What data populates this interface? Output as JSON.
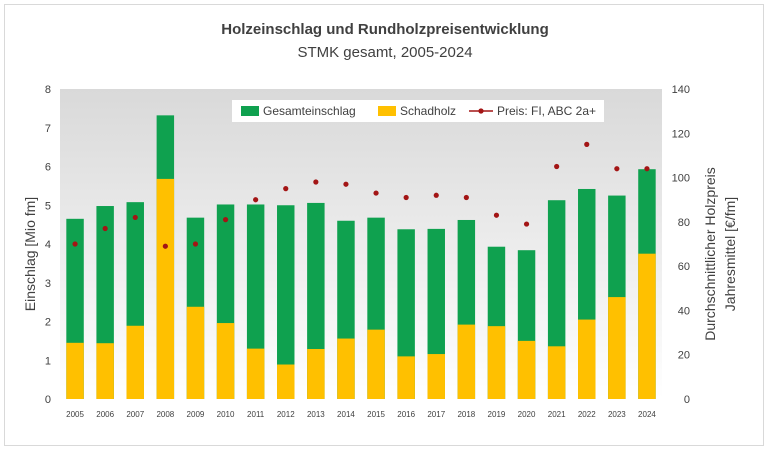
{
  "colors": {
    "total": "#0fa14f",
    "damage": "#ffc000",
    "price": "#a31515",
    "plot_bg_top": "#d9d9d9",
    "plot_bg_bottom": "#ffffff",
    "text": "#404040"
  },
  "chart_data": {
    "type": "bar",
    "title": "Holzeinschlag und Rundholzpreisentwicklung",
    "subtitle": "STMK gesamt, 2005-2024",
    "ylabel": "Einschlag [Mio fm]",
    "y2label_line1": "Durchschnittlicher Holzpreis",
    "y2label_line2": "Jahresmittel [€/fm]",
    "ylim": [
      0,
      8
    ],
    "y2lim": [
      0,
      140
    ],
    "yticks": [
      "0",
      "1",
      "2",
      "3",
      "4",
      "5",
      "6",
      "7",
      "8"
    ],
    "y2ticks": [
      "0",
      "20",
      "40",
      "60",
      "80",
      "100",
      "120",
      "140"
    ],
    "legend_position": "top-center",
    "categories": [
      "2005",
      "2006",
      "2007",
      "2008",
      "2009",
      "2010",
      "2011",
      "2012",
      "2013",
      "2014",
      "2015",
      "2016",
      "2017",
      "2018",
      "2019",
      "2020",
      "2021",
      "2022",
      "2023",
      "2024"
    ],
    "series": [
      {
        "name": "Gesamteinschlag",
        "kind": "bar",
        "values": [
          4.65,
          4.98,
          5.08,
          7.32,
          4.68,
          5.02,
          5.02,
          5.0,
          5.06,
          4.6,
          4.68,
          4.38,
          4.39,
          4.62,
          3.93,
          3.84,
          5.13,
          5.42,
          5.25,
          5.93
        ]
      },
      {
        "name": "Schadholz",
        "kind": "bar",
        "values": [
          1.45,
          1.44,
          1.89,
          5.68,
          2.38,
          1.96,
          1.3,
          0.89,
          1.29,
          1.56,
          1.79,
          1.1,
          1.16,
          1.92,
          1.88,
          1.5,
          1.36,
          2.05,
          2.63,
          3.75
        ]
      },
      {
        "name": "Preis: FI, ABC 2a+",
        "kind": "point",
        "axis": "right",
        "values": [
          70,
          77,
          82,
          69,
          70,
          81,
          90,
          95,
          98,
          97,
          93,
          91,
          92,
          91,
          83,
          79,
          105,
          115,
          104,
          104
        ]
      }
    ]
  }
}
